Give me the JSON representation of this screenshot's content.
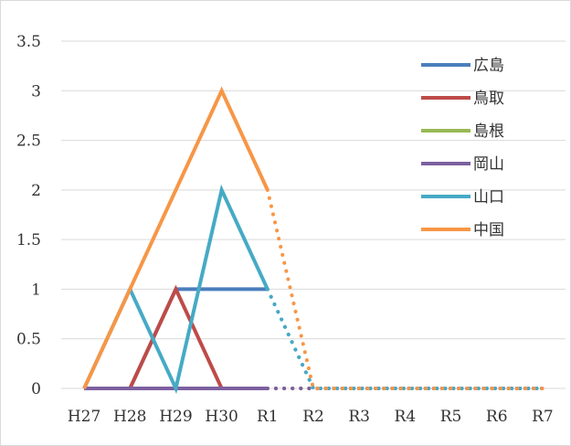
{
  "chart_data": {
    "type": "line",
    "categories": [
      "H27",
      "H28",
      "H29",
      "H30",
      "R1",
      "R2",
      "R3",
      "R4",
      "R5",
      "R6",
      "R7"
    ],
    "solid_through": "R1",
    "dotted_from": "R1",
    "ylim": [
      0,
      3.5
    ],
    "yticks": [
      "0",
      "0.5",
      "1",
      "1.5",
      "2",
      "2.5",
      "3",
      "3.5"
    ],
    "grid": true,
    "legend_position": "right",
    "series": [
      {
        "name": "広島",
        "color": "#4a7ebb",
        "values": [
          0,
          0,
          1,
          1,
          1,
          0,
          0,
          0,
          0,
          0,
          0
        ]
      },
      {
        "name": "鳥取",
        "color": "#be4b48",
        "values": [
          0,
          0,
          1,
          0,
          0,
          0,
          0,
          0,
          0,
          0,
          0
        ]
      },
      {
        "name": "島根",
        "color": "#98b954",
        "values": [
          0,
          0,
          0,
          0,
          0,
          0,
          0,
          0,
          0,
          0,
          0
        ]
      },
      {
        "name": "岡山",
        "color": "#7d60a0",
        "values": [
          0,
          0,
          0,
          0,
          0,
          0,
          0,
          0,
          0,
          0,
          0
        ]
      },
      {
        "name": "山口",
        "color": "#46aac5",
        "values": [
          0,
          1,
          0,
          2,
          1,
          0,
          0,
          0,
          0,
          0,
          0
        ]
      },
      {
        "name": "中国",
        "color": "#f79646",
        "values": [
          0,
          1,
          2,
          3,
          2,
          0,
          0,
          0,
          0,
          0,
          0
        ]
      }
    ]
  }
}
